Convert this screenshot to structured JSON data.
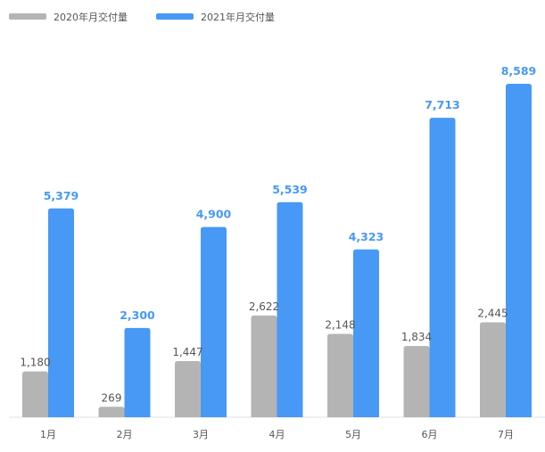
{
  "chart_data": {
    "type": "bar",
    "categories": [
      "1月",
      "2月",
      "3月",
      "4月",
      "5月",
      "6月",
      "7月"
    ],
    "series": [
      {
        "name": "2020年月交付量",
        "color": "#b4b4b4",
        "values": [
          1180,
          269,
          1447,
          2622,
          2148,
          1834,
          2445
        ],
        "labels": [
          "1,180",
          "269",
          "1,447",
          "2,622",
          "2,148",
          "1,834",
          "2,445"
        ]
      },
      {
        "name": "2021年月交付量",
        "color": "#4799f5",
        "values": [
          5379,
          2300,
          4900,
          5539,
          4323,
          7713,
          8589
        ],
        "labels": [
          "5,379",
          "2,300",
          "4,900",
          "5,539",
          "4,323",
          "7,713",
          "8,589"
        ]
      }
    ],
    "ylim": [
      0,
      8589
    ],
    "legend_position": "top-left",
    "grid": false
  }
}
